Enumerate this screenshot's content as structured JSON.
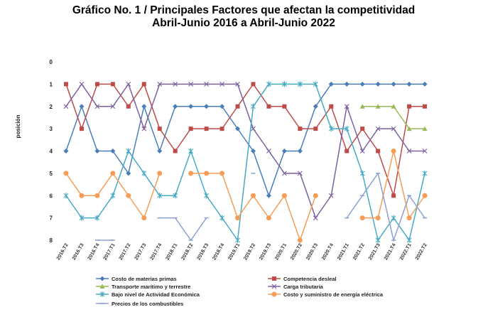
{
  "chart_data": {
    "type": "line",
    "title_line1": "Gráfico No. 1 / Principales Factores que afectan la competitividad",
    "title_line2": "Abril-Junio 2016 a Abril-Junio 2022",
    "xlabel": "",
    "ylabel": "posición",
    "ylim": [
      8,
      0
    ],
    "y_inverted": true,
    "yticks": [
      "0",
      "1",
      "2",
      "3",
      "4",
      "5",
      "6",
      "7",
      "8"
    ],
    "categories": [
      "2016.T2",
      "2016.T3",
      "2016.T4",
      "2017.T1",
      "2017.T2",
      "2017.T3",
      "2017.T4",
      "2018.T1",
      "2018.T2",
      "2018.T3",
      "2018.T4",
      "2019.T1",
      "2019.T2",
      "2019.T3",
      "2020.T1",
      "2020.T2",
      "2020.T3",
      "2020.T4",
      "2021.T1",
      "2021.T2",
      "2021.T3",
      "2021.T4",
      "2022.T1",
      "2022.T2"
    ],
    "series": [
      {
        "name": "Costo de materias primas",
        "color": "#4a7ebb",
        "marker": "diamond",
        "values": [
          4,
          2,
          4,
          4,
          5,
          2,
          4,
          2,
          2,
          2,
          2,
          3,
          4,
          6,
          4,
          4,
          2,
          1,
          1,
          1,
          1,
          1,
          1,
          1
        ]
      },
      {
        "name": "Competencia desleal",
        "color": "#be4b48",
        "marker": "square",
        "values": [
          1,
          3,
          1,
          1,
          2,
          1,
          3,
          4,
          3,
          3,
          3,
          2,
          1,
          2,
          2,
          3,
          3,
          2,
          4,
          3,
          4,
          6,
          2,
          2
        ]
      },
      {
        "name": "Transporte marítimo y terrestre",
        "color": "#98b954",
        "marker": "triangle",
        "values": [
          null,
          null,
          null,
          null,
          null,
          null,
          null,
          null,
          null,
          null,
          null,
          null,
          null,
          null,
          null,
          null,
          null,
          null,
          null,
          2,
          2,
          2,
          3,
          3
        ]
      },
      {
        "name": "Carga tributaria",
        "color": "#7d60a0",
        "marker": "x",
        "values": [
          2,
          1,
          2,
          2,
          1,
          3,
          1,
          1,
          1,
          1,
          1,
          1,
          3,
          4,
          5,
          5,
          7,
          6,
          2,
          4,
          3,
          3,
          4,
          4
        ]
      },
      {
        "name": "Bajo nivel de Actividad Económica",
        "color": "#46aac5",
        "marker": "star",
        "values": [
          6,
          7,
          7,
          6,
          4,
          5,
          6,
          6,
          4,
          6,
          7,
          8,
          2,
          1,
          1,
          1,
          1,
          3,
          3,
          5,
          8,
          7,
          8,
          5
        ]
      },
      {
        "name": "Costo y suministro de energía eléctrica",
        "color": "#f59d56",
        "marker": "circle",
        "values": [
          5,
          6,
          6,
          5,
          6,
          7,
          5,
          null,
          5,
          5,
          5,
          7,
          6,
          7,
          6,
          8,
          6,
          null,
          null,
          7,
          7,
          4,
          7,
          6
        ]
      },
      {
        "name": "Precios de los combustibles",
        "color": "#8c9fcf",
        "marker": "dash",
        "values": [
          null,
          null,
          8,
          8,
          null,
          null,
          7,
          7,
          8,
          7,
          null,
          null,
          5,
          null,
          null,
          null,
          null,
          null,
          7,
          6,
          5,
          8,
          6,
          7
        ]
      }
    ],
    "legend_position": "bottom"
  }
}
